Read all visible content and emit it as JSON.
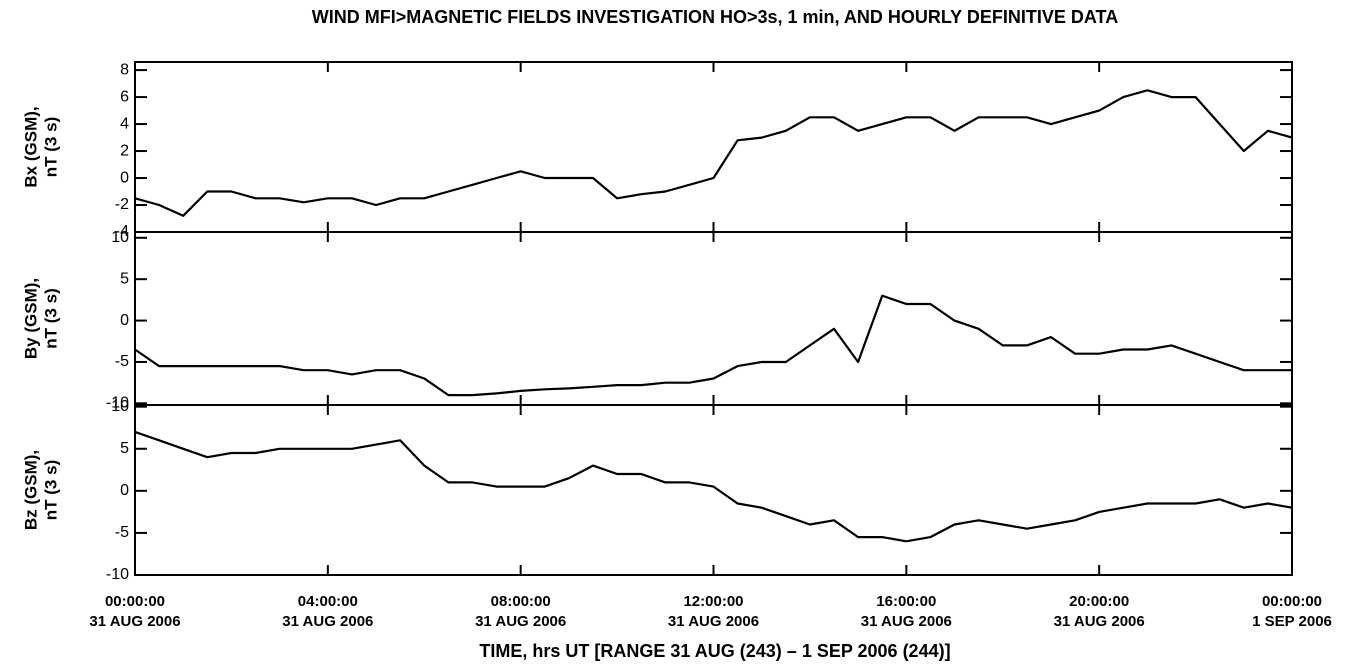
{
  "chart_data": [
    {
      "type": "line",
      "title": "WIND    MFI>MAGNETIC FIELDS INVESTIGATION HO>3s, 1 min, AND HOURLY DEFINITIVE DATA",
      "ylabel": [
        "Bx (GSM),",
        "nT (3 s)"
      ],
      "x": [
        0,
        0.5,
        1,
        1.5,
        2,
        2.5,
        3,
        3.5,
        4,
        4.5,
        5,
        5.5,
        6,
        6.5,
        7,
        7.5,
        8,
        8.5,
        9,
        9.5,
        10,
        10.5,
        11,
        11.5,
        12,
        12.5,
        13,
        13.5,
        14,
        14.5,
        15,
        15.5,
        16,
        16.5,
        17,
        17.5,
        18,
        18.5,
        19,
        19.5,
        20,
        20.5,
        21,
        21.5,
        22,
        22.5,
        23,
        23.5,
        24
      ],
      "values": [
        -1.5,
        -2,
        -2.8,
        -1,
        -1,
        -1.5,
        -1.5,
        -1.8,
        -1.5,
        -1.5,
        -2,
        -1.5,
        -1.5,
        -1,
        -0.5,
        0,
        0.5,
        0,
        0,
        0,
        -1.5,
        -1.2,
        -1,
        -0.5,
        0,
        2.8,
        3,
        3.5,
        4.5,
        4.5,
        3.5,
        4,
        4.5,
        4.5,
        3.5,
        4.5,
        4.5,
        4.5,
        4,
        4.5,
        5,
        6,
        6.5,
        6,
        6,
        4,
        2,
        3.5,
        3
      ],
      "color": "#000000",
      "xlim": [
        0,
        24
      ],
      "xticks": [
        0,
        4,
        8,
        12,
        16,
        20,
        24
      ],
      "ylim": [
        -4,
        8.6
      ],
      "yticks": [
        -4,
        -2,
        0,
        2,
        4,
        6,
        8
      ]
    },
    {
      "type": "line",
      "ylabel": [
        "By (GSM),",
        "nT (3 s)"
      ],
      "x": [
        0,
        0.5,
        1,
        1.5,
        2,
        2.5,
        3,
        3.5,
        4,
        4.5,
        5,
        5.5,
        6,
        6.5,
        7,
        7.5,
        8,
        8.5,
        9,
        9.5,
        10,
        10.5,
        11,
        11.5,
        12,
        12.5,
        13,
        13.5,
        14,
        14.5,
        15,
        15.5,
        16,
        16.5,
        17,
        17.5,
        18,
        18.5,
        19,
        19.5,
        20,
        20.5,
        21,
        21.5,
        22,
        22.5,
        23,
        23.5,
        24
      ],
      "values": [
        -3.5,
        -5.5,
        -5.5,
        -5.5,
        -5.5,
        -5.5,
        -5.5,
        -6,
        -6,
        -6.5,
        -6,
        -6,
        -7,
        -9,
        -9,
        -8.8,
        -8.5,
        -8.3,
        -8.2,
        -8,
        -7.8,
        -7.8,
        -7.5,
        -7.5,
        -7,
        -5.5,
        -5,
        -5,
        -3,
        -1,
        -5,
        3,
        2,
        2,
        0,
        -1,
        -3,
        -3,
        -2,
        -4,
        -4,
        -3.5,
        -3.5,
        -3,
        -4,
        -5,
        -6,
        -6,
        -6
      ],
      "color": "#000000",
      "xlim": [
        0,
        24
      ],
      "xticks": [
        0,
        4,
        8,
        12,
        16,
        20,
        24
      ],
      "ylim": [
        -10.2,
        10.7
      ],
      "yticks": [
        -10,
        -5,
        0,
        5,
        10
      ]
    },
    {
      "type": "line",
      "ylabel": [
        "Bz (GSM),",
        "nT (3 s)"
      ],
      "xlabel": "TIME, hrs UT [RANGE 31 AUG (243) – 1 SEP 2006 (244)]",
      "x": [
        0,
        0.5,
        1,
        1.5,
        2,
        2.5,
        3,
        3.5,
        4,
        4.5,
        5,
        5.5,
        6,
        6.5,
        7,
        7.5,
        8,
        8.5,
        9,
        9.5,
        10,
        10.5,
        11,
        11.5,
        12,
        12.5,
        13,
        13.5,
        14,
        14.5,
        15,
        15.5,
        16,
        16.5,
        17,
        17.5,
        18,
        18.5,
        19,
        19.5,
        20,
        20.5,
        21,
        21.5,
        22,
        22.5,
        23,
        23.5,
        24
      ],
      "values": [
        7,
        6,
        5,
        4,
        4.5,
        4.5,
        5,
        5,
        5,
        5,
        5.5,
        6,
        3,
        1,
        1,
        0.5,
        0.5,
        0.5,
        1.5,
        3,
        2,
        2,
        1,
        1,
        0.5,
        -1.5,
        -2,
        -3,
        -4,
        -3.5,
        -5.5,
        -5.5,
        -6,
        -5.5,
        -4,
        -3.5,
        -4,
        -4.5,
        -4,
        -3.5,
        -2.5,
        -2,
        -1.5,
        -1.5,
        -1.5,
        -1,
        -2,
        -1.5,
        -2
      ],
      "color": "#000000",
      "xlim": [
        0,
        24
      ],
      "xticks": [
        {
          "value": 0,
          "label": [
            "00:00:00",
            "31 AUG 2006"
          ]
        },
        {
          "value": 4,
          "label": [
            "04:00:00",
            "31 AUG 2006"
          ]
        },
        {
          "value": 8,
          "label": [
            "08:00:00",
            "31 AUG 2006"
          ]
        },
        {
          "value": 12,
          "label": [
            "12:00:00",
            "31 AUG 2006"
          ]
        },
        {
          "value": 16,
          "label": [
            "16:00:00",
            "31 AUG 2006"
          ]
        },
        {
          "value": 20,
          "label": [
            "20:00:00",
            "31 AUG 2006"
          ]
        },
        {
          "value": 24,
          "label": [
            "00:00:00",
            "1 SEP 2006"
          ]
        }
      ],
      "ylim": [
        -10,
        10.2
      ],
      "yticks": [
        -10,
        -5,
        0,
        5,
        10
      ]
    }
  ]
}
